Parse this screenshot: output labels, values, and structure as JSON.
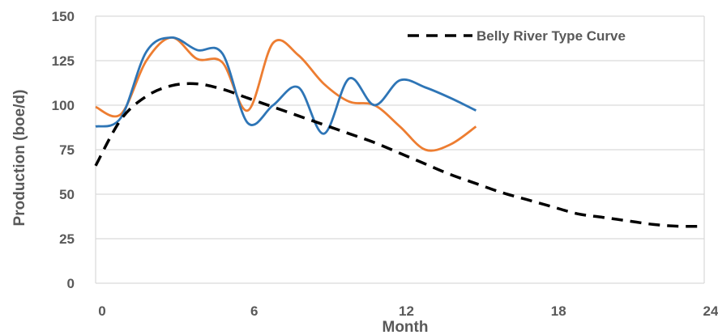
{
  "chart_data": {
    "type": "line",
    "title": "",
    "xlabel": "Month",
    "ylabel": "Production (boe/d)",
    "xlim": [
      0,
      24
    ],
    "ylim": [
      0,
      150
    ],
    "x_ticks": [
      "0",
      "6",
      "12",
      "18",
      "24"
    ],
    "y_ticks": [
      "0",
      "25",
      "50",
      "75",
      "100",
      "125",
      "150"
    ],
    "grid": "horizontal",
    "legend_placement": "top-right",
    "series": [
      {
        "name": "",
        "color": "#ED7D31",
        "style": "solid",
        "x": [
          0,
          1,
          2,
          3,
          4,
          5,
          6,
          7,
          8,
          9,
          10,
          11,
          12,
          13,
          14,
          15
        ],
        "y": [
          99,
          95,
          125,
          138,
          126,
          124,
          97,
          135,
          128,
          112,
          102,
          100,
          88,
          75,
          78,
          88
        ]
      },
      {
        "name": "",
        "color": "#2E75B6",
        "style": "solid",
        "x": [
          0,
          1,
          2,
          3,
          4,
          5,
          6,
          7,
          8,
          9,
          10,
          11,
          12,
          13,
          14,
          15
        ],
        "y": [
          88,
          93,
          130,
          138,
          131,
          129,
          90,
          100,
          110,
          84,
          115,
          100,
          114,
          110,
          104,
          97
        ]
      },
      {
        "name": "Belly River Type Curve",
        "color": "#000000",
        "style": "dashed",
        "x": [
          0,
          1,
          2,
          3,
          4,
          5,
          6,
          7,
          8,
          9,
          10,
          11,
          12,
          13,
          14,
          15,
          16,
          17,
          18,
          19,
          20,
          21,
          22,
          23,
          24
        ],
        "y": [
          66,
          92,
          105,
          111,
          112,
          109,
          104,
          99,
          94,
          89,
          84,
          79,
          73,
          67,
          61,
          56,
          51,
          47,
          43,
          39,
          37,
          35,
          33,
          32,
          32
        ]
      }
    ]
  }
}
